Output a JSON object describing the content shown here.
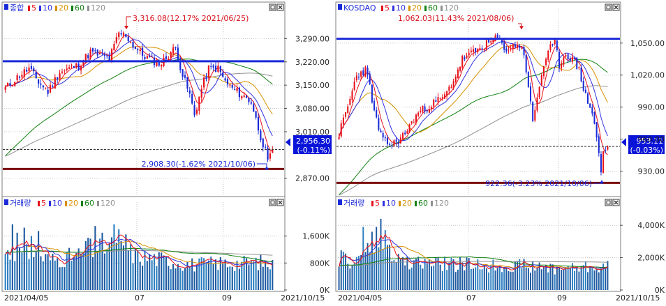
{
  "colors": {
    "up": "#e8101a",
    "down": "#1a2ad8",
    "ma5": "#e8101a",
    "ma10": "#3030e0",
    "ma20": "#d89000",
    "ma60": "#108010",
    "ma120": "#909090",
    "resistance": "#1a2ad8",
    "support": "#7a0a0a",
    "grid": "#c8c8c8",
    "tag_bg": "#0a14d8"
  },
  "icons": [
    "panel-marker-icon",
    "window-restore-icon",
    "window-close-icon",
    "current-price-arrow-icon"
  ],
  "chart_data": [
    {
      "panel": "kospi-price",
      "type": "candlestick",
      "legend": {
        "title": "종합",
        "items": [
          {
            "label": "5",
            "color": "#e8101a"
          },
          {
            "label": "10",
            "color": "#3030e0"
          },
          {
            "label": "20",
            "color": "#d89000"
          },
          {
            "label": "60",
            "color": "#108010"
          },
          {
            "label": "120",
            "color": "#909090"
          }
        ]
      },
      "y_ticks": [
        "3,290.00",
        "3,220.00",
        "3,150.00",
        "3,080.00",
        "3,010.00",
        "2,870.00"
      ],
      "y_tick_values": [
        3290,
        3220,
        3150,
        3080,
        3010,
        2870
      ],
      "ylim": [
        2840,
        3360
      ],
      "high_annotation": "3,316.08(12.17% 2021/06/25)",
      "high_value": 3316.08,
      "low_annotation": "2,908.30(-1.62% 2021/10/06)",
      "low_value": 2908.3,
      "current_price": "2,956.30",
      "current_change": "(-0.11%)",
      "current_value": 2956.3,
      "resistance_level": 3222,
      "support_level": 2898,
      "anchors": [
        [
          0,
          3140
        ],
        [
          6,
          3180
        ],
        [
          10,
          3200
        ],
        [
          14,
          3160
        ],
        [
          18,
          3130
        ],
        [
          23,
          3190
        ],
        [
          27,
          3200
        ],
        [
          31,
          3210
        ],
        [
          36,
          3250
        ],
        [
          40,
          3240
        ],
        [
          44,
          3230
        ],
        [
          48,
          3305
        ],
        [
          51,
          3300
        ],
        [
          54,
          3270
        ],
        [
          58,
          3240
        ],
        [
          62,
          3225
        ],
        [
          66,
          3215
        ],
        [
          70,
          3250
        ],
        [
          72,
          3260
        ],
        [
          75,
          3180
        ],
        [
          78,
          3120
        ],
        [
          80,
          3060
        ],
        [
          83,
          3140
        ],
        [
          86,
          3200
        ],
        [
          90,
          3200
        ],
        [
          93,
          3160
        ],
        [
          96,
          3140
        ],
        [
          100,
          3120
        ],
        [
          104,
          3100
        ],
        [
          107,
          3020
        ],
        [
          110,
          2950
        ],
        [
          111,
          2915
        ],
        [
          113,
          2956.3
        ]
      ]
    },
    {
      "panel": "kosdaq-price",
      "type": "candlestick",
      "legend": {
        "title": "KOSDAQ",
        "items": [
          {
            "label": "5",
            "color": "#e8101a"
          },
          {
            "label": "10",
            "color": "#3030e0"
          },
          {
            "label": "20",
            "color": "#d89000"
          },
          {
            "label": "60",
            "color": "#108010"
          },
          {
            "label": "120",
            "color": "#909090"
          }
        ]
      },
      "y_ticks": [
        "1,050.00",
        "1,020.00",
        "990.00",
        "960.00",
        "930.00"
      ],
      "y_tick_values": [
        1050,
        1020,
        990,
        960,
        930
      ],
      "ylim": [
        914,
        1076
      ],
      "high_annotation": "1,062.03(11.43% 2021/08/06)",
      "high_value": 1062.03,
      "low_annotation": "922.36(-3.23% 2021/10/06)",
      "low_value": 922.36,
      "current_price": "953.11",
      "current_change": "(-0.03%)",
      "current_value": 953.11,
      "resistance_level": 1054,
      "support_level": 919,
      "anchors": [
        [
          0,
          965
        ],
        [
          4,
          990
        ],
        [
          8,
          1020
        ],
        [
          12,
          1025
        ],
        [
          14,
          1010
        ],
        [
          16,
          985
        ],
        [
          18,
          970
        ],
        [
          20,
          958
        ],
        [
          24,
          955
        ],
        [
          28,
          960
        ],
        [
          32,
          972
        ],
        [
          36,
          985
        ],
        [
          40,
          990
        ],
        [
          44,
          995
        ],
        [
          48,
          1000
        ],
        [
          52,
          1015
        ],
        [
          56,
          1035
        ],
        [
          60,
          1040
        ],
        [
          64,
          1045
        ],
        [
          68,
          1050
        ],
        [
          72,
          1055
        ],
        [
          75,
          1045
        ],
        [
          78,
          1045
        ],
        [
          81,
          1050
        ],
        [
          84,
          1040
        ],
        [
          86,
          1010
        ],
        [
          88,
          975
        ],
        [
          90,
          1000
        ],
        [
          93,
          1030
        ],
        [
          96,
          1045
        ],
        [
          98,
          1050
        ],
        [
          100,
          1030
        ],
        [
          103,
          1040
        ],
        [
          106,
          1035
        ],
        [
          109,
          1025
        ],
        [
          112,
          1000
        ],
        [
          115,
          985
        ],
        [
          117,
          962
        ],
        [
          119,
          928
        ],
        [
          120,
          948
        ],
        [
          122,
          953.11
        ]
      ]
    },
    {
      "panel": "kospi-volume",
      "type": "bar",
      "legend": {
        "title": "거래량",
        "items": [
          {
            "label": "5",
            "color": "#e8101a"
          },
          {
            "label": "10",
            "color": "#3030e0"
          },
          {
            "label": "20",
            "color": "#d89000"
          },
          {
            "label": "60",
            "color": "#108010"
          },
          {
            "label": "120",
            "color": "#909090"
          }
        ]
      },
      "y_ticks": [
        "1,600K",
        "800K",
        "0K"
      ],
      "y_tick_values": [
        1600,
        800,
        0
      ],
      "ylim": [
        0,
        2400
      ],
      "spikes": [
        [
          3,
          1950
        ],
        [
          5,
          1700
        ],
        [
          8,
          1850
        ],
        [
          11,
          1600
        ],
        [
          14,
          1750
        ],
        [
          35,
          1550
        ],
        [
          38,
          1900
        ],
        [
          41,
          1700
        ],
        [
          46,
          1950
        ],
        [
          48,
          1800
        ],
        [
          51,
          1650
        ]
      ],
      "levels": [
        [
          0,
          1100
        ],
        [
          10,
          1050
        ],
        [
          20,
          900
        ],
        [
          30,
          1000
        ],
        [
          36,
          1200
        ],
        [
          42,
          1300
        ],
        [
          50,
          1200
        ],
        [
          56,
          1000
        ],
        [
          62,
          950
        ],
        [
          70,
          850
        ],
        [
          80,
          750
        ],
        [
          90,
          800
        ],
        [
          100,
          800
        ],
        [
          108,
          820
        ],
        [
          113,
          720
        ]
      ]
    },
    {
      "panel": "kosdaq-volume",
      "type": "bar",
      "legend": {
        "title": "거래량",
        "items": [
          {
            "label": "5",
            "color": "#e8101a"
          },
          {
            "label": "10",
            "color": "#3030e0"
          },
          {
            "label": "20",
            "color": "#d89000"
          },
          {
            "label": "60",
            "color": "#108010"
          },
          {
            "label": "120",
            "color": "#909090"
          }
        ]
      },
      "y_ticks": [
        "4,000K",
        "2,000K",
        "0K"
      ],
      "y_tick_values": [
        4000,
        2000,
        0
      ],
      "ylim": [
        0,
        5000
      ],
      "spikes": [
        [
          11,
          3900
        ],
        [
          13,
          2900
        ],
        [
          15,
          3600
        ],
        [
          17,
          3900
        ],
        [
          19,
          4400
        ],
        [
          21,
          3700
        ],
        [
          23,
          2800
        ]
      ],
      "levels": [
        [
          0,
          1900
        ],
        [
          8,
          1800
        ],
        [
          12,
          2200
        ],
        [
          18,
          2600
        ],
        [
          24,
          2000
        ],
        [
          30,
          1700
        ],
        [
          40,
          1650
        ],
        [
          50,
          1600
        ],
        [
          60,
          1550
        ],
        [
          70,
          1500
        ],
        [
          80,
          1550
        ],
        [
          90,
          1400
        ],
        [
          100,
          1350
        ],
        [
          110,
          1400
        ],
        [
          122,
          1500
        ]
      ]
    }
  ],
  "x_axis": {
    "labels": [
      "2021/04/05",
      "07",
      "09"
    ],
    "end_label": "2021/10/15"
  }
}
